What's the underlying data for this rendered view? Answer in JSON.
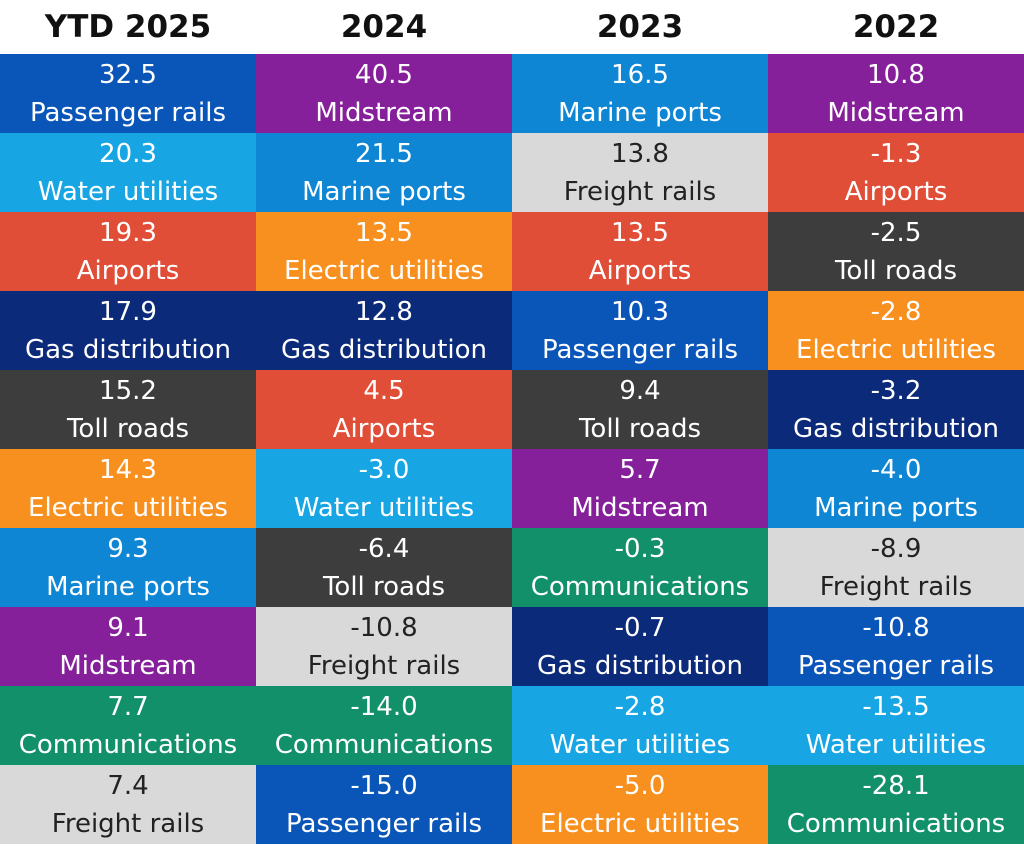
{
  "chart_data": {
    "type": "table",
    "columns": [
      "YTD 2025",
      "2024",
      "2023",
      "2022"
    ],
    "colors": {
      "Passenger rails": "#0a55b8",
      "Midstream": "#86209a",
      "Marine ports": "#0f86d4",
      "Water utilities": "#17a6e3",
      "Freight rails": "#d9d9d9",
      "Airports": "#e04e38",
      "Electric utilities": "#f8901f",
      "Toll roads": "#3d3d3d",
      "Gas distribution": "#0c2a7a",
      "Communications": "#12906a"
    },
    "text_colors": {
      "Freight rails": "#222222",
      "default": "#ffffff"
    },
    "rows": [
      [
        {
          "value": "32.5",
          "label": "Passenger rails"
        },
        {
          "value": "40.5",
          "label": "Midstream"
        },
        {
          "value": "16.5",
          "label": "Marine ports"
        },
        {
          "value": "10.8",
          "label": "Midstream"
        }
      ],
      [
        {
          "value": "20.3",
          "label": "Water utilities"
        },
        {
          "value": "21.5",
          "label": "Marine ports"
        },
        {
          "value": "13.8",
          "label": "Freight rails"
        },
        {
          "value": "-1.3",
          "label": "Airports"
        }
      ],
      [
        {
          "value": "19.3",
          "label": "Airports"
        },
        {
          "value": "13.5",
          "label": "Electric utilities"
        },
        {
          "value": "13.5",
          "label": "Airports"
        },
        {
          "value": "-2.5",
          "label": "Toll roads"
        }
      ],
      [
        {
          "value": "17.9",
          "label": "Gas distribution"
        },
        {
          "value": "12.8",
          "label": "Gas distribution"
        },
        {
          "value": "10.3",
          "label": "Passenger rails"
        },
        {
          "value": "-2.8",
          "label": "Electric utilities"
        }
      ],
      [
        {
          "value": "15.2",
          "label": "Toll roads"
        },
        {
          "value": "4.5",
          "label": "Airports"
        },
        {
          "value": "9.4",
          "label": "Toll roads"
        },
        {
          "value": "-3.2",
          "label": "Gas distribution"
        }
      ],
      [
        {
          "value": "14.3",
          "label": "Electric utilities"
        },
        {
          "value": "-3.0",
          "label": "Water utilities"
        },
        {
          "value": "5.7",
          "label": "Midstream"
        },
        {
          "value": "-4.0",
          "label": "Marine ports"
        }
      ],
      [
        {
          "value": "9.3",
          "label": "Marine ports"
        },
        {
          "value": "-6.4",
          "label": "Toll roads"
        },
        {
          "value": "-0.3",
          "label": "Communications"
        },
        {
          "value": "-8.9",
          "label": "Freight rails"
        }
      ],
      [
        {
          "value": "9.1",
          "label": "Midstream"
        },
        {
          "value": "-10.8",
          "label": "Freight rails"
        },
        {
          "value": "-0.7",
          "label": "Gas distribution"
        },
        {
          "value": "-10.8",
          "label": "Passenger rails"
        }
      ],
      [
        {
          "value": "7.7",
          "label": "Communications"
        },
        {
          "value": "-14.0",
          "label": "Communications"
        },
        {
          "value": "-2.8",
          "label": "Water utilities"
        },
        {
          "value": "-13.5",
          "label": "Water utilities"
        }
      ],
      [
        {
          "value": "7.4",
          "label": "Freight rails"
        },
        {
          "value": "-15.0",
          "label": "Passenger rails"
        },
        {
          "value": "-5.0",
          "label": "Electric utilities"
        },
        {
          "value": "-28.1",
          "label": "Communications"
        }
      ]
    ]
  }
}
